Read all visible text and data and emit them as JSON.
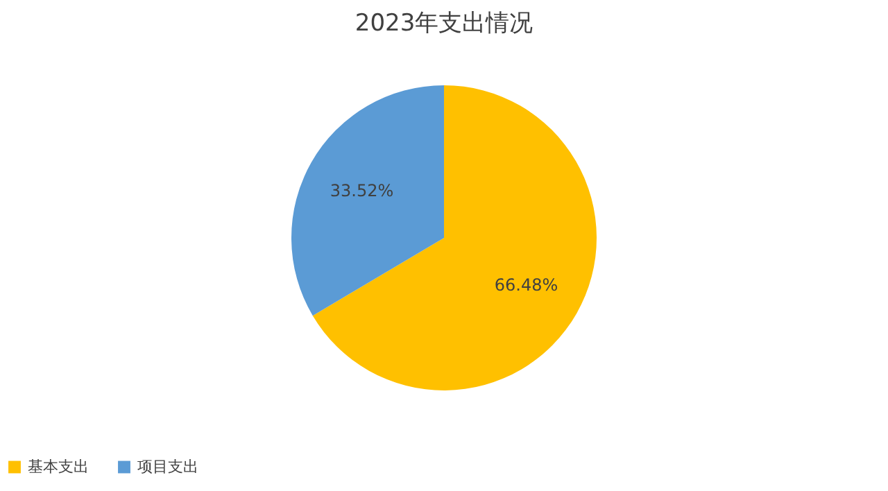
{
  "chart_data": {
    "type": "pie",
    "title": "2023年支出情况",
    "categories": [
      "基本支出",
      "项目支出"
    ],
    "values": [
      66.48,
      33.52
    ],
    "colors": [
      "#ffc000",
      "#5b9bd5"
    ],
    "value_labels": [
      "66.48%",
      "33.52%"
    ],
    "legend": "bottom"
  }
}
